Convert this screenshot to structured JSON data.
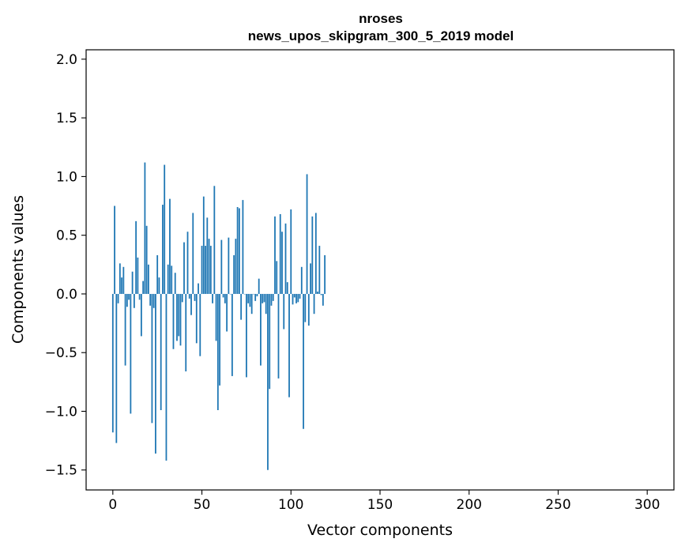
{
  "chart_data": {
    "type": "bar",
    "title": "nroses",
    "subtitle": "news_upos_skipgram_300_5_2019 model",
    "xlabel": "Vector components",
    "ylabel": "Components values",
    "xlim": [
      -15,
      315
    ],
    "ylim": [
      -1.67,
      2.08
    ],
    "xticks": [
      0,
      50,
      100,
      150,
      200,
      250,
      300
    ],
    "yticks": [
      -1.5,
      -1.0,
      -0.5,
      0.0,
      0.5,
      1.0,
      1.5,
      2.0
    ],
    "ytick_labels": [
      "−1.5",
      "−1.0",
      "−0.5",
      "0.0",
      "0.5",
      "1.0",
      "1.5",
      "2.0"
    ],
    "bar_color": "#1f77b4",
    "grid": false,
    "x_start": 0,
    "values": [
      -1.18,
      0.75,
      -1.27,
      -0.08,
      0.26,
      0.14,
      0.23,
      -0.61,
      -0.11,
      -0.05,
      -1.02,
      0.19,
      -0.12,
      0.62,
      0.31,
      -0.05,
      -0.36,
      0.11,
      1.12,
      0.58,
      0.25,
      -0.1,
      -1.1,
      -0.12,
      -1.36,
      0.33,
      0.14,
      -0.99,
      0.76,
      1.1,
      -1.42,
      0.25,
      0.81,
      0.24,
      -0.47,
      0.18,
      -0.4,
      -0.36,
      -0.44,
      -0.07,
      0.44,
      -0.66,
      0.53,
      -0.04,
      -0.18,
      0.69,
      -0.06,
      -0.42,
      0.09,
      -0.53,
      0.41,
      0.83,
      0.41,
      0.65,
      0.47,
      0.41,
      -0.08,
      0.92,
      -0.4,
      -0.99,
      -0.78,
      0.46,
      -0.03,
      -0.08,
      -0.32,
      0.48,
      0.0,
      -0.7,
      0.33,
      0.47,
      0.74,
      0.73,
      -0.22,
      0.8,
      0.0,
      -0.71,
      -0.08,
      -0.11,
      -0.17,
      0.0,
      -0.06,
      -0.02,
      0.13,
      -0.61,
      -0.08,
      -0.07,
      -0.17,
      -1.5,
      -0.81,
      -0.1,
      -0.06,
      0.66,
      0.28,
      -0.72,
      0.68,
      0.53,
      -0.3,
      0.6,
      0.1,
      -0.88,
      0.72,
      -0.09,
      -0.03,
      -0.08,
      -0.07,
      -0.04,
      0.23,
      -1.15,
      -0.24,
      1.02,
      -0.27,
      0.26,
      0.66,
      -0.17,
      0.69,
      0.02,
      0.41,
      -0.01,
      -0.1,
      0.33
    ]
  }
}
